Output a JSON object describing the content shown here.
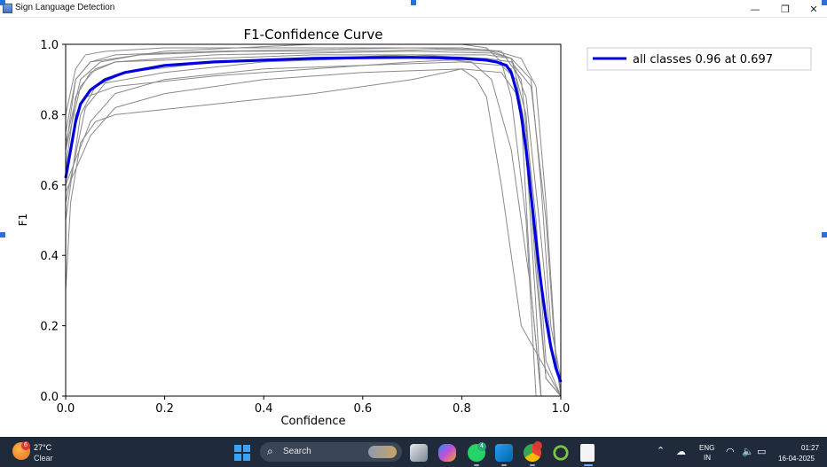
{
  "window": {
    "title": "Sign Language Detection",
    "minimize_label": "—",
    "maximize_label": "❐",
    "close_label": "✕"
  },
  "chart_data": {
    "type": "line",
    "title": "F1-Confidence Curve",
    "xlabel": "Confidence",
    "ylabel": "F1",
    "xlim": [
      0.0,
      1.0
    ],
    "ylim": [
      0.0,
      1.0
    ],
    "x_ticks": [
      "0.0",
      "0.2",
      "0.4",
      "0.6",
      "0.8",
      "1.0"
    ],
    "y_ticks": [
      "0.0",
      "0.2",
      "0.4",
      "0.6",
      "0.8",
      "1.0"
    ],
    "grid": false,
    "legend_position": "outside-top-right",
    "legend": "all classes 0.96 at 0.697",
    "colors": {
      "aggregate": "#0000dd",
      "classes": "#8a8a8a"
    },
    "series": [
      {
        "name": "all classes 0.96 at 0.697",
        "x": [
          0.0,
          0.005,
          0.01,
          0.02,
          0.03,
          0.05,
          0.08,
          0.12,
          0.2,
          0.3,
          0.4,
          0.5,
          0.6,
          0.697,
          0.75,
          0.8,
          0.85,
          0.87,
          0.89,
          0.9,
          0.91,
          0.92,
          0.93,
          0.94,
          0.95,
          0.96,
          0.97,
          0.98,
          0.99,
          1.0
        ],
        "y": [
          0.62,
          0.66,
          0.7,
          0.78,
          0.83,
          0.87,
          0.9,
          0.92,
          0.94,
          0.95,
          0.955,
          0.96,
          0.962,
          0.963,
          0.962,
          0.96,
          0.955,
          0.95,
          0.94,
          0.92,
          0.87,
          0.8,
          0.7,
          0.57,
          0.44,
          0.32,
          0.22,
          0.14,
          0.08,
          0.04
        ]
      }
    ],
    "class_curves": [
      {
        "x": [
          0.0,
          0.02,
          0.05,
          0.1,
          0.3,
          0.5,
          0.7,
          0.85,
          0.9,
          0.93,
          0.95,
          0.97,
          1.0
        ],
        "y": [
          0.75,
          0.9,
          0.95,
          0.97,
          0.98,
          0.985,
          0.99,
          0.985,
          0.96,
          0.8,
          0.4,
          0.05,
          0.0
        ]
      },
      {
        "x": [
          0.0,
          0.02,
          0.05,
          0.1,
          0.3,
          0.5,
          0.7,
          0.85,
          0.9,
          0.92,
          0.94,
          0.96,
          1.0
        ],
        "y": [
          0.65,
          0.85,
          0.92,
          0.95,
          0.96,
          0.97,
          0.97,
          0.96,
          0.93,
          0.8,
          0.3,
          0.0,
          0.0
        ]
      },
      {
        "x": [
          0.0,
          0.03,
          0.06,
          0.12,
          0.3,
          0.5,
          0.7,
          0.85,
          0.9,
          0.94,
          0.96,
          0.98,
          1.0
        ],
        "y": [
          0.5,
          0.8,
          0.88,
          0.92,
          0.95,
          0.96,
          0.97,
          0.97,
          0.96,
          0.9,
          0.6,
          0.2,
          0.05
        ]
      },
      {
        "x": [
          0.0,
          0.02,
          0.04,
          0.08,
          0.2,
          0.4,
          0.6,
          0.8,
          0.88,
          0.92,
          0.95,
          0.97,
          1.0
        ],
        "y": [
          0.8,
          0.93,
          0.97,
          0.98,
          0.99,
          0.99,
          0.99,
          0.99,
          0.98,
          0.9,
          0.5,
          0.1,
          0.0
        ]
      },
      {
        "x": [
          0.0,
          0.05,
          0.1,
          0.2,
          0.4,
          0.6,
          0.8,
          0.88,
          0.91,
          0.93,
          0.95,
          0.97,
          1.0
        ],
        "y": [
          0.6,
          0.78,
          0.86,
          0.9,
          0.93,
          0.94,
          0.95,
          0.94,
          0.9,
          0.75,
          0.35,
          0.05,
          0.0
        ]
      },
      {
        "x": [
          0.0,
          0.03,
          0.06,
          0.1,
          0.3,
          0.5,
          0.7,
          0.86,
          0.9,
          0.93,
          0.96,
          0.98,
          1.0
        ],
        "y": [
          0.7,
          0.88,
          0.93,
          0.95,
          0.97,
          0.975,
          0.98,
          0.975,
          0.96,
          0.85,
          0.45,
          0.15,
          0.02
        ]
      },
      {
        "x": [
          0.0,
          0.02,
          0.05,
          0.2,
          0.5,
          0.7,
          0.8,
          0.85,
          0.88,
          0.9,
          0.93,
          0.95,
          1.0
        ],
        "y": [
          0.7,
          0.9,
          0.95,
          0.98,
          1.0,
          1.0,
          1.0,
          0.99,
          0.95,
          0.85,
          0.5,
          0.0,
          0.0
        ]
      },
      {
        "x": [
          0.0,
          0.04,
          0.08,
          0.2,
          0.4,
          0.6,
          0.75,
          0.82,
          0.86,
          0.9,
          0.94,
          0.96,
          1.0
        ],
        "y": [
          0.55,
          0.82,
          0.89,
          0.92,
          0.95,
          0.96,
          0.96,
          0.95,
          0.9,
          0.7,
          0.3,
          0.0,
          0.0
        ]
      },
      {
        "x": [
          0.0,
          0.01,
          0.03,
          0.06,
          0.1,
          0.3,
          0.5,
          0.7,
          0.8,
          0.83,
          0.85,
          0.88,
          0.92,
          1.0
        ],
        "y": [
          0.3,
          0.55,
          0.72,
          0.78,
          0.8,
          0.83,
          0.86,
          0.9,
          0.93,
          0.9,
          0.85,
          0.6,
          0.2,
          0.0
        ]
      },
      {
        "x": [
          0.0,
          0.02,
          0.04,
          0.1,
          0.3,
          0.5,
          0.7,
          0.85,
          0.9,
          0.94,
          0.97,
          0.99,
          1.0
        ],
        "y": [
          0.6,
          0.8,
          0.85,
          0.88,
          0.91,
          0.93,
          0.95,
          0.96,
          0.95,
          0.88,
          0.5,
          0.1,
          0.0
        ]
      },
      {
        "x": [
          0.0,
          0.03,
          0.07,
          0.15,
          0.35,
          0.55,
          0.75,
          0.87,
          0.92,
          0.95,
          0.97,
          0.99,
          1.0
        ],
        "y": [
          0.72,
          0.9,
          0.95,
          0.97,
          0.98,
          0.98,
          0.985,
          0.98,
          0.96,
          0.88,
          0.55,
          0.12,
          0.0
        ]
      },
      {
        "x": [
          0.0,
          0.05,
          0.1,
          0.2,
          0.4,
          0.6,
          0.8,
          0.88,
          0.91,
          0.93,
          0.95,
          0.96,
          1.0
        ],
        "y": [
          0.58,
          0.74,
          0.82,
          0.86,
          0.9,
          0.92,
          0.93,
          0.92,
          0.86,
          0.7,
          0.25,
          0.0,
          0.0
        ]
      }
    ]
  },
  "taskbar": {
    "weather_badge": "6",
    "weather_temp": "27°C",
    "weather_cond": "Clear",
    "search_label": "Search",
    "whatsapp_badge": "4",
    "lang_1": "ENG",
    "lang_2": "IN",
    "time": "01:27",
    "date": "16-04-2025"
  }
}
